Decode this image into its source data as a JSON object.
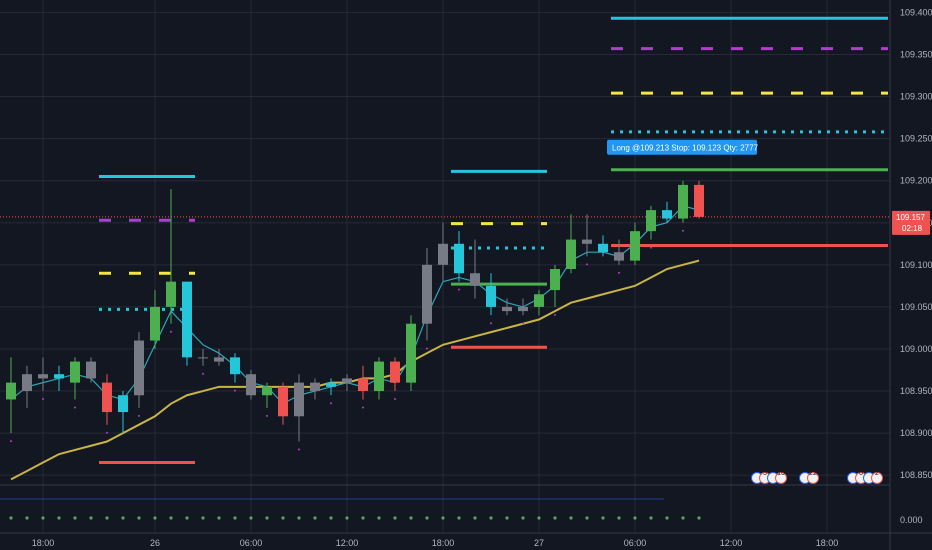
{
  "chart_data": {
    "type": "candlestick",
    "y_range": [
      108.83,
      109.41
    ],
    "y_ticks": [
      "109.400",
      "109.350",
      "109.300",
      "109.250",
      "109.200",
      "109.150",
      "109.100",
      "109.050",
      "109.000",
      "108.950",
      "108.900",
      "108.850"
    ],
    "y_tick_values": [
      109.4,
      109.35,
      109.3,
      109.25,
      109.2,
      109.15,
      109.1,
      109.05,
      109.0,
      108.95,
      108.9,
      108.85
    ],
    "indicator_tick": "0.000",
    "x_ticks": [
      "18:00",
      "26",
      "06:00",
      "12:00",
      "18:00",
      "27",
      "06:00",
      "12:00",
      "18:00"
    ],
    "x_tick_index": [
      2,
      9,
      15,
      21,
      27,
      33,
      39,
      45,
      51
    ],
    "last_price": "109.157",
    "last_price_value": 109.157,
    "countdown": "02:18",
    "trade_label": "Long @109.213 Stop: 109.123 Qty: 2777",
    "colors": {
      "bull": "#4caf50",
      "bear": "#ef5350",
      "neutral": "#787b86",
      "highlight": "#26c6da",
      "ema_slow": "#c9b543",
      "ema_fast": "#2aa7b8"
    },
    "candles": [
      {
        "o": 108.96,
        "h": 108.99,
        "l": 108.9,
        "c": 108.94,
        "k": "bull"
      },
      {
        "o": 108.95,
        "h": 108.98,
        "l": 108.93,
        "c": 108.97,
        "k": "neutral"
      },
      {
        "o": 108.97,
        "h": 108.99,
        "l": 108.95,
        "c": 108.965,
        "k": "neutral"
      },
      {
        "o": 108.965,
        "h": 108.98,
        "l": 108.95,
        "c": 108.97,
        "k": "highlight"
      },
      {
        "o": 108.96,
        "h": 108.99,
        "l": 108.94,
        "c": 108.985,
        "k": "bull"
      },
      {
        "o": 108.985,
        "h": 108.99,
        "l": 108.96,
        "c": 108.965,
        "k": "neutral"
      },
      {
        "o": 108.96,
        "h": 108.97,
        "l": 108.91,
        "c": 108.925,
        "k": "bear"
      },
      {
        "o": 108.925,
        "h": 108.95,
        "l": 108.9,
        "c": 108.945,
        "k": "highlight"
      },
      {
        "o": 108.945,
        "h": 109.02,
        "l": 108.93,
        "c": 109.01,
        "k": "neutral"
      },
      {
        "o": 109.01,
        "h": 109.07,
        "l": 109.0,
        "c": 109.05,
        "k": "bull"
      },
      {
        "o": 109.05,
        "h": 109.19,
        "l": 109.03,
        "c": 109.08,
        "k": "bull"
      },
      {
        "o": 109.08,
        "h": 109.08,
        "l": 108.98,
        "c": 108.99,
        "k": "highlight"
      },
      {
        "o": 108.99,
        "h": 109.0,
        "l": 108.98,
        "c": 108.99,
        "k": "neutral"
      },
      {
        "o": 108.99,
        "h": 109.0,
        "l": 108.98,
        "c": 108.985,
        "k": "neutral"
      },
      {
        "o": 108.99,
        "h": 108.995,
        "l": 108.96,
        "c": 108.97,
        "k": "highlight"
      },
      {
        "o": 108.97,
        "h": 108.975,
        "l": 108.94,
        "c": 108.945,
        "k": "neutral"
      },
      {
        "o": 108.945,
        "h": 108.96,
        "l": 108.93,
        "c": 108.955,
        "k": "bull"
      },
      {
        "o": 108.955,
        "h": 108.96,
        "l": 108.91,
        "c": 108.92,
        "k": "bear"
      },
      {
        "o": 108.92,
        "h": 108.97,
        "l": 108.89,
        "c": 108.96,
        "k": "neutral"
      },
      {
        "o": 108.96,
        "h": 108.965,
        "l": 108.94,
        "c": 108.95,
        "k": "neutral"
      },
      {
        "o": 108.955,
        "h": 108.965,
        "l": 108.945,
        "c": 108.96,
        "k": "highlight"
      },
      {
        "o": 108.96,
        "h": 108.97,
        "l": 108.95,
        "c": 108.965,
        "k": "neutral"
      },
      {
        "o": 108.965,
        "h": 108.98,
        "l": 108.94,
        "c": 108.95,
        "k": "bear"
      },
      {
        "o": 108.95,
        "h": 108.99,
        "l": 108.94,
        "c": 108.985,
        "k": "bull"
      },
      {
        "o": 108.985,
        "h": 108.99,
        "l": 108.95,
        "c": 108.96,
        "k": "bear"
      },
      {
        "o": 108.96,
        "h": 109.04,
        "l": 108.95,
        "c": 109.03,
        "k": "bull"
      },
      {
        "o": 109.03,
        "h": 109.12,
        "l": 109.01,
        "c": 109.1,
        "k": "neutral"
      },
      {
        "o": 109.1,
        "h": 109.15,
        "l": 109.08,
        "c": 109.125,
        "k": "neutral"
      },
      {
        "o": 109.125,
        "h": 109.14,
        "l": 109.08,
        "c": 109.09,
        "k": "highlight"
      },
      {
        "o": 109.09,
        "h": 109.13,
        "l": 109.06,
        "c": 109.075,
        "k": "neutral"
      },
      {
        "o": 109.075,
        "h": 109.09,
        "l": 109.04,
        "c": 109.05,
        "k": "highlight"
      },
      {
        "o": 109.05,
        "h": 109.06,
        "l": 109.04,
        "c": 109.045,
        "k": "neutral"
      },
      {
        "o": 109.045,
        "h": 109.06,
        "l": 109.04,
        "c": 109.05,
        "k": "neutral"
      },
      {
        "o": 109.05,
        "h": 109.07,
        "l": 109.04,
        "c": 109.065,
        "k": "bull"
      },
      {
        "o": 109.07,
        "h": 109.1,
        "l": 109.05,
        "c": 109.095,
        "k": "bull"
      },
      {
        "o": 109.095,
        "h": 109.16,
        "l": 109.09,
        "c": 109.13,
        "k": "bull"
      },
      {
        "o": 109.13,
        "h": 109.16,
        "l": 109.11,
        "c": 109.125,
        "k": "neutral"
      },
      {
        "o": 109.125,
        "h": 109.135,
        "l": 109.11,
        "c": 109.115,
        "k": "highlight"
      },
      {
        "o": 109.115,
        "h": 109.13,
        "l": 109.1,
        "c": 109.105,
        "k": "neutral"
      },
      {
        "o": 109.105,
        "h": 109.15,
        "l": 109.1,
        "c": 109.14,
        "k": "bull"
      },
      {
        "o": 109.14,
        "h": 109.17,
        "l": 109.13,
        "c": 109.165,
        "k": "bull"
      },
      {
        "o": 109.165,
        "h": 109.175,
        "l": 109.15,
        "c": 109.155,
        "k": "highlight"
      },
      {
        "o": 109.155,
        "h": 109.2,
        "l": 109.15,
        "c": 109.195,
        "k": "bull"
      },
      {
        "o": 109.195,
        "h": 109.2,
        "l": 109.155,
        "c": 109.157,
        "k": "bear"
      }
    ],
    "ema_slow": [
      108.845,
      108.855,
      108.865,
      108.875,
      108.88,
      108.885,
      108.89,
      108.9,
      108.91,
      108.92,
      108.935,
      108.945,
      108.95,
      108.955,
      108.955,
      108.955,
      108.955,
      108.955,
      108.955,
      108.955,
      108.96,
      108.96,
      108.965,
      108.965,
      108.97,
      108.985,
      108.995,
      109.005,
      109.01,
      109.015,
      109.02,
      109.025,
      109.03,
      109.035,
      109.045,
      109.055,
      109.06,
      109.065,
      109.07,
      109.075,
      109.085,
      109.095,
      109.1,
      109.105
    ],
    "ema_fast": [
      108.94,
      108.955,
      108.96,
      108.965,
      108.97,
      108.965,
      108.945,
      108.94,
      108.965,
      109.005,
      109.045,
      109.025,
      109.005,
      108.995,
      108.98,
      108.96,
      108.955,
      108.935,
      108.945,
      108.95,
      108.955,
      108.96,
      108.955,
      108.965,
      108.96,
      108.99,
      109.04,
      109.08,
      109.085,
      109.08,
      109.065,
      109.055,
      109.05,
      109.06,
      109.075,
      109.105,
      109.115,
      109.115,
      109.11,
      109.125,
      109.145,
      109.15,
      109.17,
      109.165
    ],
    "levels": [
      {
        "name": "cyan-top",
        "from": 38,
        "to": 58,
        "value": 109.393,
        "style": "solid",
        "color": "#26c6da"
      },
      {
        "name": "magenta-dash",
        "from": 38,
        "to": 58,
        "value": 109.357,
        "style": "dash",
        "color": "#b33ccc"
      },
      {
        "name": "yellow-dash",
        "from": 38,
        "to": 58,
        "value": 109.304,
        "style": "dash",
        "color": "#f5e642"
      },
      {
        "name": "cyan-dots",
        "from": 38,
        "to": 58,
        "value": 109.258,
        "style": "dots",
        "color": "#26c6da"
      },
      {
        "name": "long-entry",
        "from": 38,
        "to": 58,
        "value": 109.213,
        "style": "solid",
        "color": "#4caf50"
      },
      {
        "name": "long-stop",
        "from": 38,
        "to": 58,
        "value": 109.123,
        "style": "solid",
        "color": "#ef5350"
      },
      {
        "name": "cyan-prev",
        "from": 6,
        "to": 11,
        "value": 109.205,
        "style": "solid",
        "color": "#26c6da"
      },
      {
        "name": "magenta-prev",
        "from": 6,
        "to": 11,
        "value": 109.153,
        "style": "dash",
        "color": "#b33ccc"
      },
      {
        "name": "yellow-prev",
        "from": 6,
        "to": 11,
        "value": 109.09,
        "style": "dash",
        "color": "#f5e642"
      },
      {
        "name": "cyan-dots-prev",
        "from": 6,
        "to": 11,
        "value": 109.047,
        "style": "dots",
        "color": "#26c6da"
      },
      {
        "name": "red-prev",
        "from": 6,
        "to": 11,
        "value": 108.865,
        "style": "solid",
        "color": "#ef5350"
      },
      {
        "name": "cyan-27",
        "from": 28,
        "to": 33,
        "value": 109.211,
        "style": "solid",
        "color": "#26c6da"
      },
      {
        "name": "yellow-27",
        "from": 28,
        "to": 33,
        "value": 109.149,
        "style": "dash",
        "color": "#f5e642"
      },
      {
        "name": "cyan-dots-27",
        "from": 28,
        "to": 33,
        "value": 109.12,
        "style": "dots",
        "color": "#26c6da"
      },
      {
        "name": "green-27",
        "from": 28,
        "to": 33,
        "value": 109.077,
        "style": "solid",
        "color": "#4caf50"
      },
      {
        "name": "red-27",
        "from": 28,
        "to": 33,
        "value": 109.002,
        "style": "solid",
        "color": "#ef5350"
      }
    ],
    "events": [
      "5",
      "16",
      "22",
      "6",
      "2"
    ],
    "event_positions": [
      47,
      48,
      50,
      53,
      54
    ]
  }
}
